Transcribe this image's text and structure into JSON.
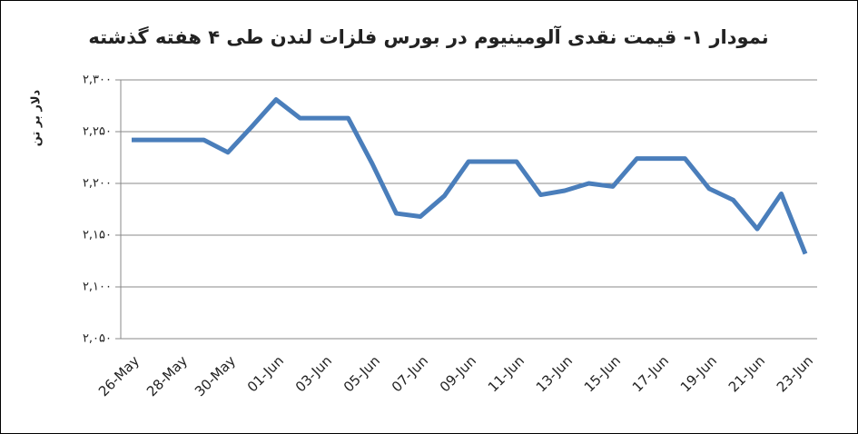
{
  "chart_data": {
    "type": "line",
    "title": "نمودار ۱- قیمت نقدی آلومینیوم در بورس فلزات لندن طی ۴ هفته گذشته",
    "y_label": "دلار بر تن",
    "categories": [
      "26-May",
      null,
      "28-May",
      null,
      "30-May",
      null,
      "01-Jun",
      null,
      "03-Jun",
      null,
      "05-Jun",
      null,
      "07-Jun",
      null,
      "09-Jun",
      null,
      "11-Jun",
      null,
      "13-Jun",
      null,
      "15-Jun",
      null,
      "17-Jun",
      null,
      "19-Jun",
      null,
      "21-Jun",
      null,
      "23-Jun"
    ],
    "series": [
      {
        "name": "Aluminium",
        "color": "#4a7ebb",
        "values": [
          2242,
          2242,
          2242,
          2242,
          2230,
          2255,
          2281,
          2263,
          2263,
          2263,
          2219,
          2171,
          2168,
          2188,
          2221,
          2221,
          2221,
          2189,
          2193,
          2200,
          2197,
          2224,
          2224,
          2224,
          2195,
          2184,
          2156,
          2190,
          2132
        ]
      }
    ],
    "ylim": [
      2050,
      2300
    ],
    "yticks": [
      {
        "value": 2050,
        "label": "۲,۰۵۰"
      },
      {
        "value": 2100,
        "label": "۲,۱۰۰"
      },
      {
        "value": 2150,
        "label": "۲,۱۵۰"
      },
      {
        "value": 2200,
        "label": "۲,۲۰۰"
      },
      {
        "value": 2250,
        "label": "۲,۲۵۰"
      },
      {
        "value": 2300,
        "label": "۲,۳۰۰"
      }
    ],
    "grid": true
  }
}
